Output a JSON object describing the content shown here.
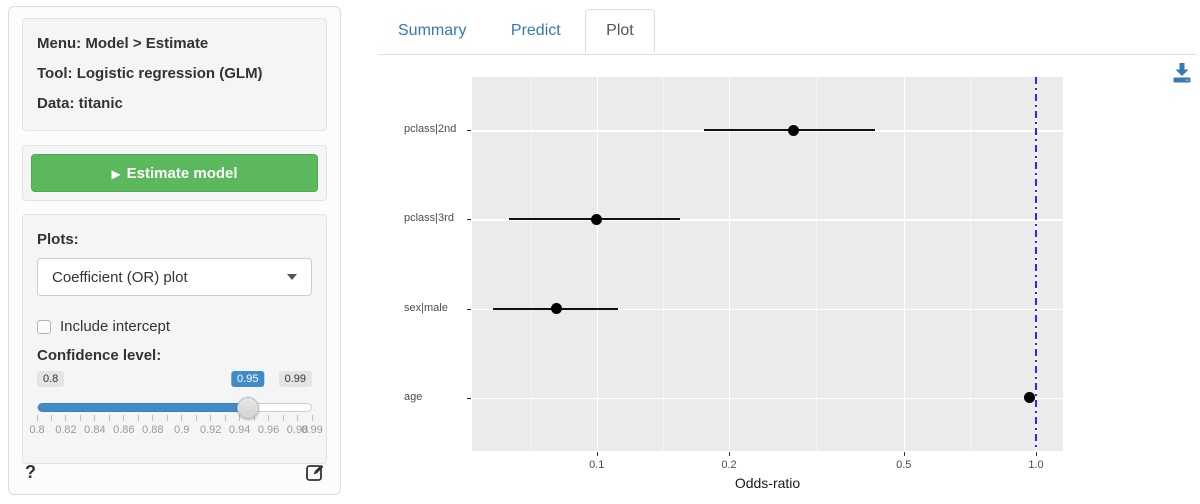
{
  "sidebar": {
    "info": {
      "menu": "Menu: Model > Estimate",
      "tool": "Tool: Logistic regression (GLM)",
      "data": "Data: titanic"
    },
    "estimate_button_label": "Estimate model",
    "play_icon": "▶",
    "plots_label": "Plots:",
    "plot_type_value": "Coefficient (OR) plot",
    "intercept_label": "Include intercept",
    "intercept_checked": false,
    "confidence_label": "Confidence level:",
    "slider": {
      "min": 0.8,
      "max": 0.99,
      "value": 0.95,
      "min_label": "0.8",
      "value_label": "0.95",
      "max_label": "0.99",
      "tick_count": 20,
      "tick_labels": [
        "0.8",
        "0.82",
        "0.84",
        "0.86",
        "0.88",
        "0.9",
        "0.92",
        "0.94",
        "0.96",
        "0.98",
        "0.99"
      ]
    },
    "help_label": "?"
  },
  "tabs": [
    {
      "label": "Summary",
      "active": false
    },
    {
      "label": "Predict",
      "active": false
    },
    {
      "label": "Plot",
      "active": true
    }
  ],
  "icons": {
    "download": "download-icon",
    "edit": "pencil-square-icon",
    "play": "play-icon",
    "caret": "chevron-down-icon",
    "help": "question-mark-icon"
  },
  "colors": {
    "link_blue": "#337ab7",
    "slider_blue": "#428bca",
    "button_green": "#5cb85c",
    "panel_grey": "#ebebeb",
    "reference_blue": "#2a2ae8"
  },
  "chart_data": {
    "type": "scatter",
    "subtype": "coefficient-odds-ratio-plot",
    "title": "",
    "xlabel": "Odds-ratio",
    "ylabel": "",
    "x_scale": "log10",
    "x_range": [
      0.052,
      1.152
    ],
    "grid": true,
    "legend": "none",
    "categories": [
      "pclass|2nd",
      "pclass|3rd",
      "sex|male",
      "age"
    ],
    "points": [
      {
        "label": "pclass|2nd",
        "or": 0.28,
        "ci_low": 0.175,
        "ci_high": 0.43
      },
      {
        "label": "pclass|3rd",
        "or": 0.1,
        "ci_low": 0.063,
        "ci_high": 0.155
      },
      {
        "label": "sex|male",
        "or": 0.081,
        "ci_low": 0.058,
        "ci_high": 0.112
      },
      {
        "label": "age",
        "or": 0.965,
        "ci_low": 0.951,
        "ci_high": 0.981
      }
    ],
    "x_ticks": [
      {
        "value": 0.1,
        "label": "0.1"
      },
      {
        "value": 0.2,
        "label": "0.2"
      },
      {
        "value": 0.5,
        "label": "0.5"
      },
      {
        "value": 1.0,
        "label": "1.0"
      }
    ],
    "minor_gridlines": [
      0.0707,
      0.1414,
      0.3162,
      0.7071
    ],
    "reference_line": {
      "value": 1.0,
      "style": "dotdash",
      "color": "#2a2ae8"
    }
  }
}
